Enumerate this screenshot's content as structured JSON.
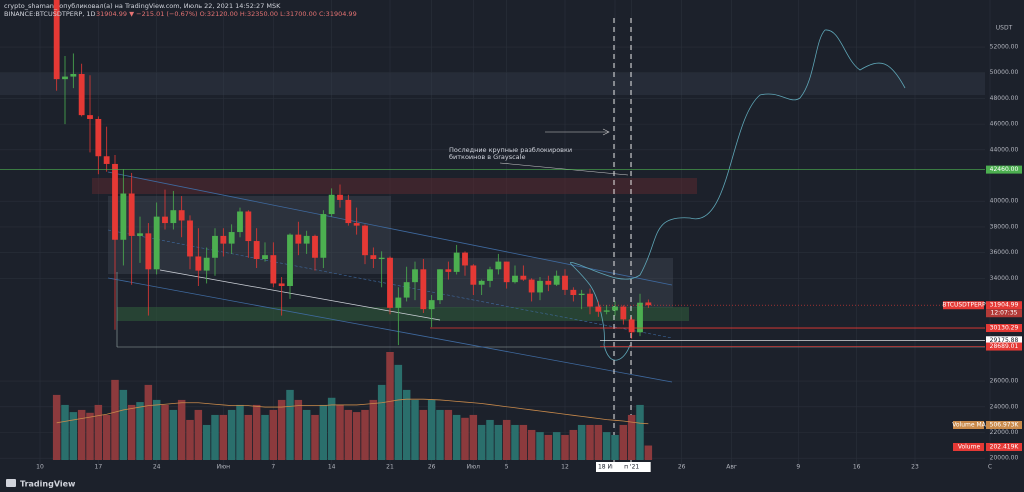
{
  "header": {
    "author": "crypto_shaman_ опубликовал(а) на TradingView.com, Июль 22, 2021 14:52:27 MSK",
    "symbol": "BINANCE:BTCUSDTPERP, 1D",
    "quote": "31904.99 ▼ −215.01 (−0.67%) O:32120.00 H:32350.00 L:31700.00 C:31904.99"
  },
  "footer": {
    "brand": "TradingView"
  },
  "chart_data": {
    "type": "candlestick",
    "currency": "USDT",
    "annotation": [
      "Последние крупные разблокировки",
      "биткоинов в Grayscale"
    ],
    "up_color": "#4caf50",
    "down_color": "#e53935",
    "volume_up_color": "#2a6f6c",
    "volume_down_color": "#8c3a3d",
    "ma_color": "#c98a4b",
    "ylim": [
      19470,
      55660
    ],
    "xlim": [
      -6.8,
      111.4
    ],
    "grid": true,
    "yticks": [
      {
        "value": 20000,
        "label": "20000.00"
      },
      {
        "value": 22000,
        "label": "22000.00"
      },
      {
        "value": 24000,
        "label": "24000.00"
      },
      {
        "value": 26000,
        "label": "26000.00"
      },
      {
        "value": 34000,
        "label": "34000.00"
      },
      {
        "value": 36000,
        "label": "36000.00"
      },
      {
        "value": 38000,
        "label": "38000.00"
      },
      {
        "value": 40000,
        "label": "40000.00"
      },
      {
        "value": 44000,
        "label": "44000.00"
      },
      {
        "value": 46000,
        "label": "46000.00"
      },
      {
        "value": 48000,
        "label": "48000.00"
      },
      {
        "value": 50000,
        "label": "50000.00"
      },
      {
        "value": 52000,
        "label": "52000.00"
      }
    ],
    "xticks": [
      {
        "value": -2,
        "label": "10"
      },
      {
        "value": 5,
        "label": "17"
      },
      {
        "value": 12,
        "label": "24"
      },
      {
        "value": 20,
        "label": "Июн"
      },
      {
        "value": 26,
        "label": "7"
      },
      {
        "value": 33,
        "label": "14"
      },
      {
        "value": 40,
        "label": "21"
      },
      {
        "value": 45,
        "label": "26"
      },
      {
        "value": 50,
        "label": "Июл"
      },
      {
        "value": 54,
        "label": "5"
      },
      {
        "value": 61,
        "label": "12"
      },
      {
        "value": 67,
        "label": "18 Июл '21"
      },
      {
        "value": 69,
        "label": "п '21"
      },
      {
        "value": 75,
        "label": "26"
      },
      {
        "value": 81,
        "label": "Авг"
      },
      {
        "value": 89,
        "label": "9"
      },
      {
        "value": 96,
        "label": "16"
      },
      {
        "value": 103,
        "label": "23"
      },
      {
        "value": 112,
        "label": "С"
      }
    ],
    "ohlc": [
      [
        56700,
        58000,
        48600,
        49500
      ],
      [
        49500,
        51300,
        46000,
        49700
      ],
      [
        49700,
        51500,
        48800,
        49900
      ],
      [
        49900,
        50700,
        46600,
        46700
      ],
      [
        46700,
        49800,
        43800,
        46400
      ],
      [
        46400,
        46600,
        42100,
        43500
      ],
      [
        43500,
        45800,
        42300,
        42900
      ],
      [
        42900,
        43600,
        30000,
        37000
      ],
      [
        37000,
        42500,
        35000,
        40600
      ],
      [
        40600,
        42200,
        33500,
        37300
      ],
      [
        37300,
        38800,
        35200,
        37500
      ],
      [
        37500,
        38300,
        31100,
        34700
      ],
      [
        34700,
        39900,
        34300,
        38800
      ],
      [
        38800,
        40900,
        37800,
        38300
      ],
      [
        38300,
        40800,
        37800,
        39300
      ],
      [
        39300,
        40400,
        37200,
        38500
      ],
      [
        38500,
        38900,
        34700,
        35700
      ],
      [
        35700,
        37900,
        33400,
        34600
      ],
      [
        34600,
        36400,
        33600,
        35600
      ],
      [
        35600,
        37900,
        34200,
        37300
      ],
      [
        37300,
        37900,
        35700,
        36700
      ],
      [
        36700,
        38200,
        35900,
        37600
      ],
      [
        37600,
        39500,
        37200,
        39200
      ],
      [
        39200,
        39300,
        35600,
        36900
      ],
      [
        36900,
        37900,
        34800,
        35500
      ],
      [
        35500,
        36800,
        35300,
        35800
      ],
      [
        35800,
        36800,
        33300,
        33600
      ],
      [
        33600,
        34100,
        31100,
        33400
      ],
      [
        33400,
        37500,
        32400,
        37400
      ],
      [
        37400,
        38400,
        35800,
        36700
      ],
      [
        36700,
        37700,
        35900,
        37300
      ],
      [
        37300,
        37400,
        34600,
        35600
      ],
      [
        35600,
        39300,
        34800,
        39000
      ],
      [
        39000,
        41000,
        38800,
        40500
      ],
      [
        40500,
        41300,
        39500,
        40100
      ],
      [
        40100,
        40500,
        38100,
        38300
      ],
      [
        38300,
        39500,
        37400,
        38100
      ],
      [
        38100,
        38200,
        35100,
        35800
      ],
      [
        35800,
        36400,
        34800,
        35500
      ],
      [
        35500,
        36100,
        33300,
        35600
      ],
      [
        35600,
        35700,
        31200,
        31700
      ],
      [
        31700,
        33300,
        28800,
        32500
      ],
      [
        32500,
        34900,
        32200,
        33700
      ],
      [
        33700,
        35300,
        32300,
        34700
      ],
      [
        34700,
        35500,
        31300,
        31600
      ],
      [
        31600,
        32700,
        30200,
        32300
      ],
      [
        32300,
        34700,
        32000,
        34700
      ],
      [
        34700,
        35300,
        33900,
        34500
      ],
      [
        34500,
        36600,
        34300,
        36000
      ],
      [
        36000,
        36100,
        34200,
        35000
      ],
      [
        35000,
        35100,
        32700,
        33500
      ],
      [
        33500,
        33900,
        32700,
        33800
      ],
      [
        33800,
        34900,
        33300,
        34700
      ],
      [
        34700,
        35900,
        34300,
        35300
      ],
      [
        35300,
        35300,
        33200,
        33700
      ],
      [
        33700,
        35000,
        33600,
        34200
      ],
      [
        34200,
        35000,
        33800,
        33900
      ],
      [
        33900,
        34000,
        32200,
        32900
      ],
      [
        32900,
        34100,
        32300,
        33800
      ],
      [
        33800,
        34200,
        33000,
        33500
      ],
      [
        33500,
        34600,
        33400,
        34200
      ],
      [
        34200,
        34700,
        32700,
        33100
      ],
      [
        33100,
        33300,
        32200,
        32700
      ],
      [
        32700,
        33100,
        31600,
        32800
      ],
      [
        32800,
        33200,
        31200,
        31800
      ],
      [
        31800,
        32200,
        31000,
        31400
      ],
      [
        31400,
        31900,
        31200,
        31500
      ],
      [
        31500,
        32200,
        31100,
        31800
      ],
      [
        31800,
        31900,
        30400,
        30800
      ],
      [
        30800,
        31000,
        29300,
        29800
      ],
      [
        29800,
        32800,
        29500,
        32100
      ],
      [
        32120,
        32350,
        31700,
        31904.99
      ]
    ],
    "volume": [
      910,
      770,
      670,
      700,
      660,
      770,
      630,
      1120,
      980,
      770,
      810,
      1050,
      840,
      770,
      700,
      840,
      560,
      700,
      490,
      630,
      630,
      700,
      770,
      630,
      770,
      630,
      700,
      840,
      980,
      840,
      700,
      630,
      770,
      870,
      770,
      700,
      670,
      700,
      840,
      1050,
      1510,
      1330,
      980,
      840,
      700,
      840,
      700,
      700,
      630,
      590,
      630,
      490,
      560,
      490,
      560,
      490,
      490,
      420,
      390,
      350,
      390,
      350,
      420,
      490,
      490,
      490,
      390,
      350,
      490,
      630,
      770,
      202.419
    ],
    "volume_ma": [
      520,
      540,
      560,
      580,
      600,
      620,
      640,
      670,
      700,
      720,
      740,
      760,
      770,
      780,
      790,
      800,
      800,
      800,
      790,
      780,
      770,
      760,
      760,
      760,
      750,
      740,
      740,
      740,
      750,
      760,
      760,
      760,
      760,
      770,
      770,
      770,
      770,
      780,
      790,
      800,
      820,
      840,
      850,
      850,
      850,
      845,
      840,
      830,
      820,
      810,
      800,
      790,
      775,
      760,
      745,
      730,
      715,
      700,
      685,
      670,
      655,
      640,
      625,
      610,
      595,
      580,
      565,
      555,
      545,
      530,
      515,
      506.973
    ],
    "price_lines": [
      {
        "value": 42460,
        "label": "42460.00",
        "color": "#4caf50"
      },
      {
        "value": 31904.99,
        "label": "31904.99",
        "color": "#e53935"
      },
      {
        "value": 30130.29,
        "label": "30130.29",
        "color": "#e53935"
      },
      {
        "value": 29175.88,
        "label": "29175.88",
        "color": "#ffffff"
      },
      {
        "value": 28689.01,
        "label": "28689.01",
        "color": "#e53935"
      }
    ],
    "symbol_tag": "BTCUSDTPERP",
    "countdown": "12:07:35",
    "volume_ma_tag": {
      "name": "Volume MA",
      "label": "506.973K"
    },
    "volume_tag": {
      "name": "Volume",
      "label": "202.419K"
    }
  }
}
